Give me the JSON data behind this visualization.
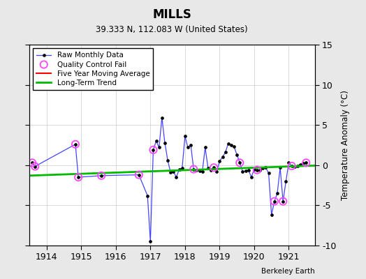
{
  "title": "MILLS",
  "subtitle": "39.333 N, 112.083 W (United States)",
  "ylabel": "Temperature Anomaly (°C)",
  "attribution": "Berkeley Earth",
  "ylim": [
    -10,
    15
  ],
  "xlim": [
    1913.5,
    1921.75
  ],
  "xticks": [
    1914,
    1915,
    1916,
    1917,
    1918,
    1919,
    1920,
    1921
  ],
  "yticks": [
    -10,
    -5,
    0,
    5,
    10,
    15
  ],
  "raw_x": [
    1913.583,
    1913.667,
    1914.833,
    1914.917,
    1915.583,
    1916.667,
    1916.917,
    1917.0,
    1917.083,
    1917.167,
    1917.25,
    1917.333,
    1917.417,
    1917.5,
    1917.583,
    1917.667,
    1917.75,
    1917.833,
    1917.917,
    1918.0,
    1918.083,
    1918.167,
    1918.25,
    1918.333,
    1918.417,
    1918.5,
    1918.583,
    1918.667,
    1918.75,
    1918.833,
    1918.917,
    1919.0,
    1919.083,
    1919.167,
    1919.25,
    1919.333,
    1919.417,
    1919.5,
    1919.583,
    1919.667,
    1919.75,
    1919.833,
    1919.917,
    1920.0,
    1920.083,
    1920.167,
    1920.25,
    1920.333,
    1920.417,
    1920.5,
    1920.583,
    1920.667,
    1920.75,
    1920.833,
    1920.917,
    1921.0,
    1921.083,
    1921.167,
    1921.25,
    1921.333,
    1921.417,
    1921.5
  ],
  "raw_y": [
    0.3,
    -0.15,
    2.6,
    -1.5,
    -1.3,
    -1.2,
    -3.8,
    -9.5,
    1.9,
    3.0,
    2.2,
    5.9,
    2.8,
    0.6,
    -0.9,
    -0.8,
    -1.5,
    -0.5,
    -0.4,
    3.6,
    2.2,
    2.5,
    -0.5,
    -0.6,
    -0.7,
    -0.8,
    2.2,
    -0.4,
    -0.6,
    -0.3,
    -0.8,
    0.5,
    1.0,
    1.6,
    2.7,
    2.5,
    2.3,
    1.3,
    0.3,
    -0.8,
    -0.7,
    -0.6,
    -1.5,
    -0.5,
    -0.6,
    -0.6,
    -0.4,
    -0.3,
    -1.0,
    -6.2,
    -4.5,
    -3.5,
    -0.3,
    -4.5,
    -2.0,
    0.3,
    -0.1,
    -0.2,
    -0.1,
    0.1,
    0.2,
    0.3
  ],
  "qc_fail_x": [
    1913.583,
    1913.667,
    1914.833,
    1914.917,
    1915.583,
    1916.667,
    1917.083,
    1918.25,
    1918.833,
    1919.583,
    1920.083,
    1920.583,
    1920.833,
    1921.083,
    1921.5
  ],
  "qc_fail_y": [
    0.3,
    -0.15,
    2.6,
    -1.5,
    -1.3,
    -1.2,
    1.9,
    -0.5,
    -0.3,
    0.3,
    -0.6,
    -4.5,
    -4.5,
    -0.1,
    0.3
  ],
  "trend_x": [
    1913.5,
    1921.75
  ],
  "trend_y": [
    -1.3,
    -0.05
  ],
  "raw_line_color": "#4444ff",
  "raw_marker_color": "#000000",
  "qc_color": "#ff44ff",
  "moving_avg_color": "#ff0000",
  "trend_color": "#00bb00",
  "background_color": "#e8e8e8",
  "plot_bg_color": "#ffffff",
  "grid_color": "#cccccc"
}
